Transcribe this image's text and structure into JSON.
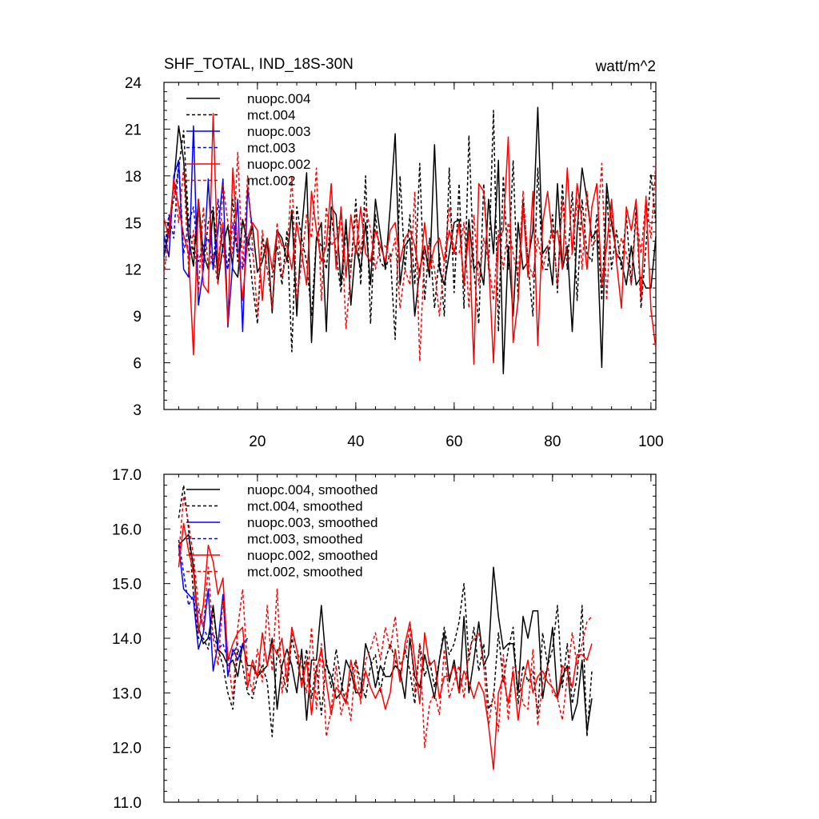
{
  "chart_data": [
    {
      "type": "line",
      "title": "SHF_TOTAL, IND_18S-30N",
      "units": "watt/m^2",
      "xlim": [
        1,
        101
      ],
      "ylim": [
        3,
        24
      ],
      "xticks": [
        20,
        40,
        60,
        80,
        100
      ],
      "yticks": [
        3,
        6,
        9,
        12,
        15,
        18,
        21,
        24
      ],
      "legend_position": "top-left",
      "series": [
        {
          "name": "nuopc.004",
          "color": "#000000",
          "dash": "solid",
          "x_start": 1,
          "values": [
            12.8,
            14.5,
            17.5,
            21.2,
            19.0,
            14.0,
            12.2,
            16.5,
            13.0,
            12.0,
            15.8,
            11.2,
            13.5,
            14.8,
            12.0,
            11.5,
            15.2,
            13.5,
            14.8,
            11.8,
            12.5,
            14.0,
            9.2,
            14.5,
            14.0,
            12.5,
            15.8,
            9.0,
            14.5,
            18.2,
            7.3,
            14.0,
            15.0,
            8.0,
            16.0,
            15.5,
            11.0,
            15.2,
            9.7,
            13.5,
            12.0,
            15.0,
            11.0,
            16.5,
            14.2,
            12.0,
            16.0,
            20.7,
            11.0,
            13.5,
            14.0,
            9.0,
            12.0,
            13.5,
            11.5,
            20.0,
            12.0,
            11.0,
            13.0,
            15.0,
            15.2,
            11.0,
            15.2,
            12.0,
            12.5,
            11.0,
            16.5,
            13.0,
            19.0,
            5.3,
            13.5,
            9.0,
            15.0,
            12.0,
            12.5,
            14.5,
            22.4,
            13.0,
            13.5,
            11.0,
            17.5,
            12.0,
            13.5,
            8.0,
            14.5,
            18.5,
            16.5,
            14.0,
            14.5,
            5.7,
            17.5,
            15.0,
            13.0,
            12.5,
            11.0,
            13.5,
            11.0,
            11.5,
            10.8,
            10.8,
            14.1
          ]
        },
        {
          "name": "mct.004",
          "color": "#000000",
          "dash": "dashed",
          "x_start": 1,
          "values": [
            13.0,
            15.0,
            16.5,
            18.5,
            20.9,
            15.0,
            13.0,
            16.0,
            12.0,
            15.0,
            16.0,
            12.5,
            14.5,
            12.0,
            16.5,
            12.5,
            15.0,
            14.0,
            11.0,
            8.5,
            14.0,
            12.0,
            11.5,
            13.5,
            11.0,
            14.5,
            6.7,
            16.0,
            14.0,
            12.5,
            9.0,
            14.0,
            13.5,
            12.0,
            15.5,
            13.0,
            10.5,
            14.5,
            12.0,
            16.5,
            11.0,
            18.0,
            8.5,
            15.5,
            12.5,
            12.0,
            13.0,
            7.5,
            18.0,
            12.0,
            15.5,
            11.0,
            18.8,
            10.0,
            14.0,
            9.5,
            13.0,
            9.0,
            18.5,
            10.5,
            17.5,
            9.5,
            20.6,
            12.0,
            8.5,
            17.5,
            12.0,
            22.2,
            8.0,
            18.0,
            12.0,
            19.0,
            10.0,
            16.5,
            12.5,
            9.0,
            18.5,
            12.0,
            12.0,
            15.5,
            10.5,
            17.5,
            12.0,
            17.0,
            10.0,
            16.5,
            13.0,
            12.5,
            15.5,
            10.0,
            17.0,
            12.0,
            14.5,
            12.0,
            15.5,
            11.0,
            16.0,
            9.5,
            13.5,
            18.1,
            15.0
          ]
        },
        {
          "name": "nuopc.003",
          "color": "#0000ff",
          "dash": "solid",
          "x_start": 1,
          "values": [
            14.2,
            12.8,
            18.0,
            19.0,
            12.0,
            11.5,
            21.2,
            9.7,
            12.0,
            17.8,
            12.0,
            14.5,
            17.8,
            8.3,
            12.5,
            16.5,
            8.0,
            17.2,
            14.5
          ]
        },
        {
          "name": "mct.003",
          "color": "#0000ff",
          "dash": "dashed",
          "x_start": 1,
          "values": [
            13.0,
            15.5,
            14.0,
            19.0,
            13.0,
            15.0,
            16.0,
            12.5,
            13.5,
            14.0,
            12.0,
            16.5,
            13.0,
            12.0,
            15.0,
            13.0,
            12.0,
            14.0,
            13.0
          ]
        },
        {
          "name": "nuopc.002",
          "color": "#ff0000",
          "dash": "solid",
          "x_start": 1,
          "values": [
            15.3,
            14.0,
            17.8,
            16.0,
            14.2,
            13.0,
            6.5,
            16.5,
            11.0,
            10.5,
            22.0,
            12.0,
            15.0,
            8.5,
            18.5,
            13.5,
            10.0,
            14.0,
            15.0,
            14.5,
            10.0,
            14.0,
            12.0,
            14.5,
            13.5,
            13.5,
            12.0,
            15.0,
            13.0,
            11.0,
            17.0,
            14.5,
            12.5,
            13.5,
            17.5,
            12.0,
            16.0,
            11.5,
            15.5,
            13.0,
            16.0,
            13.0,
            12.5,
            14.5,
            13.5,
            12.5,
            14.5,
            15.0,
            12.5,
            14.0,
            14.5,
            13.5,
            11.5,
            15.0,
            12.0,
            13.5,
            14.0,
            12.5,
            14.5,
            13.0,
            15.0,
            11.0,
            14.5,
            5.9,
            17.5,
            17.0,
            12.5,
            6.0,
            14.0,
            14.5,
            20.5,
            7.3,
            10.0,
            16.0,
            11.5,
            17.0,
            7.1,
            15.0,
            17.0,
            14.0,
            14.5,
            12.0,
            18.5,
            13.0,
            17.5,
            15.0,
            12.0,
            16.0,
            17.5,
            11.0,
            13.5,
            16.5,
            12.5,
            9.5,
            16.0,
            14.5,
            16.5,
            10.0,
            16.7,
            9.4,
            6.9
          ]
        },
        {
          "name": "mct.002",
          "color": "#ff0000",
          "dash": "dashed",
          "x_start": 1,
          "values": [
            11.6,
            14.5,
            17.5,
            15.0,
            18.5,
            12.0,
            14.5,
            10.5,
            16.0,
            12.0,
            13.0,
            11.0,
            17.5,
            15.0,
            13.0,
            19.5,
            12.0,
            18.0,
            13.5,
            9.0,
            14.5,
            12.0,
            9.5,
            15.0,
            11.5,
            13.0,
            18.0,
            10.0,
            12.5,
            15.5,
            14.0,
            18.5,
            10.0,
            16.0,
            13.5,
            14.0,
            15.5,
            8.2,
            12.0,
            15.5,
            13.0,
            16.0,
            14.5,
            12.0,
            13.5,
            13.5,
            12.5,
            14.0,
            9.5,
            12.0,
            11.0,
            17.0,
            6.1,
            13.5,
            13.5,
            12.0,
            9.0,
            12.5,
            16.0,
            13.0,
            13.0,
            15.0,
            9.5,
            15.5,
            11.0,
            14.0,
            12.5,
            10.0,
            14.5,
            12.0,
            15.0,
            13.0,
            11.5,
            17.0,
            12.5,
            11.5,
            14.0,
            12.0,
            13.5,
            14.5,
            11.0,
            16.5,
            12.5,
            13.0,
            16.5,
            12.0,
            17.0,
            13.5,
            14.0,
            18.8,
            10.0,
            16.0,
            12.5,
            14.0,
            13.0,
            11.0,
            15.5,
            13.0,
            16.5,
            14.0,
            18.8
          ]
        }
      ]
    },
    {
      "type": "line",
      "title": "",
      "xlim": [
        1,
        101
      ],
      "ylim": [
        11.0,
        17.0
      ],
      "yticks": [
        "11.0",
        "12.0",
        "13.0",
        "14.0",
        "15.0",
        "16.0",
        "17.0"
      ],
      "legend_position": "top-left",
      "series": [
        {
          "name": "nuopc.004, smoothed",
          "color": "#000000",
          "dash": "solid",
          "x_start": 4,
          "values": [
            15.7,
            15.8,
            15.9,
            15.3,
            14.2,
            13.9,
            14.0,
            14.6,
            13.8,
            13.7,
            13.5,
            13.6,
            13.3,
            13.9,
            13.5,
            13.5,
            13.3,
            13.4,
            13.5,
            14.0,
            12.7,
            13.5,
            13.8,
            13.5,
            13.0,
            13.8,
            12.5,
            13.6,
            13.6,
            14.6,
            13.5,
            13.3,
            12.9,
            13.0,
            13.6,
            13.4,
            13.0,
            13.0,
            13.9,
            13.6,
            13.1,
            13.5,
            13.3,
            13.3,
            13.5,
            13.4,
            12.9,
            14.0,
            13.3,
            13.1,
            13.7,
            13.3,
            12.9,
            13.6,
            14.1,
            13.2,
            13.6,
            13.0,
            14.4,
            13.0,
            13.6,
            14.3,
            13.5,
            13.7,
            15.3,
            14.4,
            13.8,
            13.9,
            13.9,
            13.0,
            14.4,
            14.0,
            14.5,
            14.5,
            12.9,
            13.5,
            14.2,
            12.9,
            13.3,
            13.5,
            12.5,
            12.8,
            13.6,
            12.3,
            12.9
          ]
        },
        {
          "name": "mct.004, smoothed",
          "color": "#000000",
          "dash": "dashed",
          "x_start": 4,
          "values": [
            16.2,
            16.8,
            16.0,
            14.8,
            14.0,
            14.0,
            13.8,
            14.5,
            13.8,
            13.5,
            13.0,
            12.7,
            13.8,
            13.5,
            13.0,
            12.9,
            13.3,
            13.5,
            13.2,
            12.2,
            13.8,
            13.4,
            13.0,
            14.0,
            13.6,
            13.2,
            13.8,
            12.9,
            13.5,
            12.6,
            13.6,
            13.1,
            13.8,
            13.2,
            12.8,
            13.3,
            13.6,
            13.2,
            12.9,
            13.5,
            13.7,
            13.0,
            13.6,
            13.9,
            13.6,
            13.3,
            13.8,
            13.4,
            12.8,
            13.9,
            13.3,
            13.6,
            13.1,
            13.6,
            14.2,
            13.7,
            13.9,
            14.3,
            15.0,
            13.6,
            14.2,
            13.4,
            13.9,
            12.7,
            12.9,
            14.1,
            13.2,
            13.8,
            14.2,
            12.8,
            13.5,
            13.2,
            13.4,
            12.6,
            14.1,
            13.5,
            13.8,
            14.6,
            13.1,
            13.9,
            12.8,
            13.3,
            14.6,
            12.2,
            13.4
          ]
        },
        {
          "name": "nuopc.003, smoothed",
          "color": "#0000ff",
          "dash": "solid",
          "x_start": 4,
          "values": [
            15.7,
            14.9,
            14.8,
            14.7,
            13.8,
            14.1,
            14.9,
            13.4,
            13.9,
            14.8,
            13.3,
            13.8,
            13.6,
            13.9,
            14.0
          ]
        },
        {
          "name": "mct.003, smoothed",
          "color": "#0000ff",
          "dash": "dashed",
          "x_start": 4,
          "values": [
            15.8,
            15.2,
            14.6,
            14.8,
            14.5,
            14.2,
            14.0,
            14.1,
            13.8,
            13.9,
            13.6,
            13.7,
            13.9,
            13.8,
            14.0
          ]
        },
        {
          "name": "nuopc.002, smoothed",
          "color": "#ff0000",
          "dash": "solid",
          "x_start": 4,
          "values": [
            15.3,
            16.1,
            15.6,
            15.2,
            14.1,
            14.6,
            15.7,
            15.4,
            14.8,
            15.1,
            13.6,
            13.9,
            14.1,
            14.2,
            13.1,
            13.6,
            13.3,
            14.1,
            13.5,
            13.9,
            13.7,
            14.0,
            13.2,
            14.2,
            13.8,
            13.1,
            13.6,
            12.6,
            13.4,
            13.8,
            13.2,
            12.6,
            13.1,
            13.0,
            12.8,
            13.6,
            13.1,
            12.9,
            13.4,
            13.1,
            12.9,
            13.1,
            12.7,
            13.0,
            13.8,
            13.2,
            13.9,
            14.3,
            13.6,
            12.8,
            14.1,
            13.5,
            13.6,
            12.9,
            13.3,
            13.3,
            13.5,
            13.0,
            13.4,
            13.2,
            12.9,
            13.2,
            13.0,
            12.4,
            11.6,
            13.0,
            13.3,
            12.8,
            13.4,
            12.5,
            13.2,
            13.6,
            13.0,
            13.3,
            13.4,
            13.2,
            13.1,
            12.9,
            13.5,
            13.4,
            13.1,
            13.7,
            13.7,
            13.6,
            13.9
          ]
        },
        {
          "name": "mct.002, smoothed",
          "color": "#ff0000",
          "dash": "dashed",
          "x_start": 4,
          "values": [
            15.5,
            16.6,
            16.1,
            15.5,
            14.6,
            14.2,
            15.3,
            14.0,
            13.5,
            14.7,
            13.7,
            12.9,
            14.2,
            14.9,
            13.4,
            13.0,
            13.8,
            13.2,
            14.6,
            13.4,
            14.9,
            13.0,
            13.5,
            14.1,
            13.8,
            13.5,
            13.0,
            14.2,
            12.7,
            13.9,
            12.2,
            12.7,
            13.5,
            12.6,
            13.0,
            12.5,
            13.6,
            12.8,
            13.6,
            13.8,
            14.1,
            13.6,
            14.2,
            13.8,
            14.4,
            13.5,
            13.7,
            14.2,
            13.0,
            13.9,
            12.0,
            12.8,
            13.0,
            12.6,
            13.8,
            12.9,
            13.2,
            13.5,
            12.9,
            13.8,
            14.0,
            14.1,
            13.5,
            12.4,
            13.0,
            12.3,
            13.7,
            12.5,
            13.5,
            13.4,
            12.8,
            12.7,
            13.8,
            12.4,
            13.2,
            13.5,
            13.0,
            12.9,
            12.5,
            13.3,
            14.1,
            13.5,
            13.9,
            14.3,
            14.4
          ]
        }
      ]
    }
  ]
}
